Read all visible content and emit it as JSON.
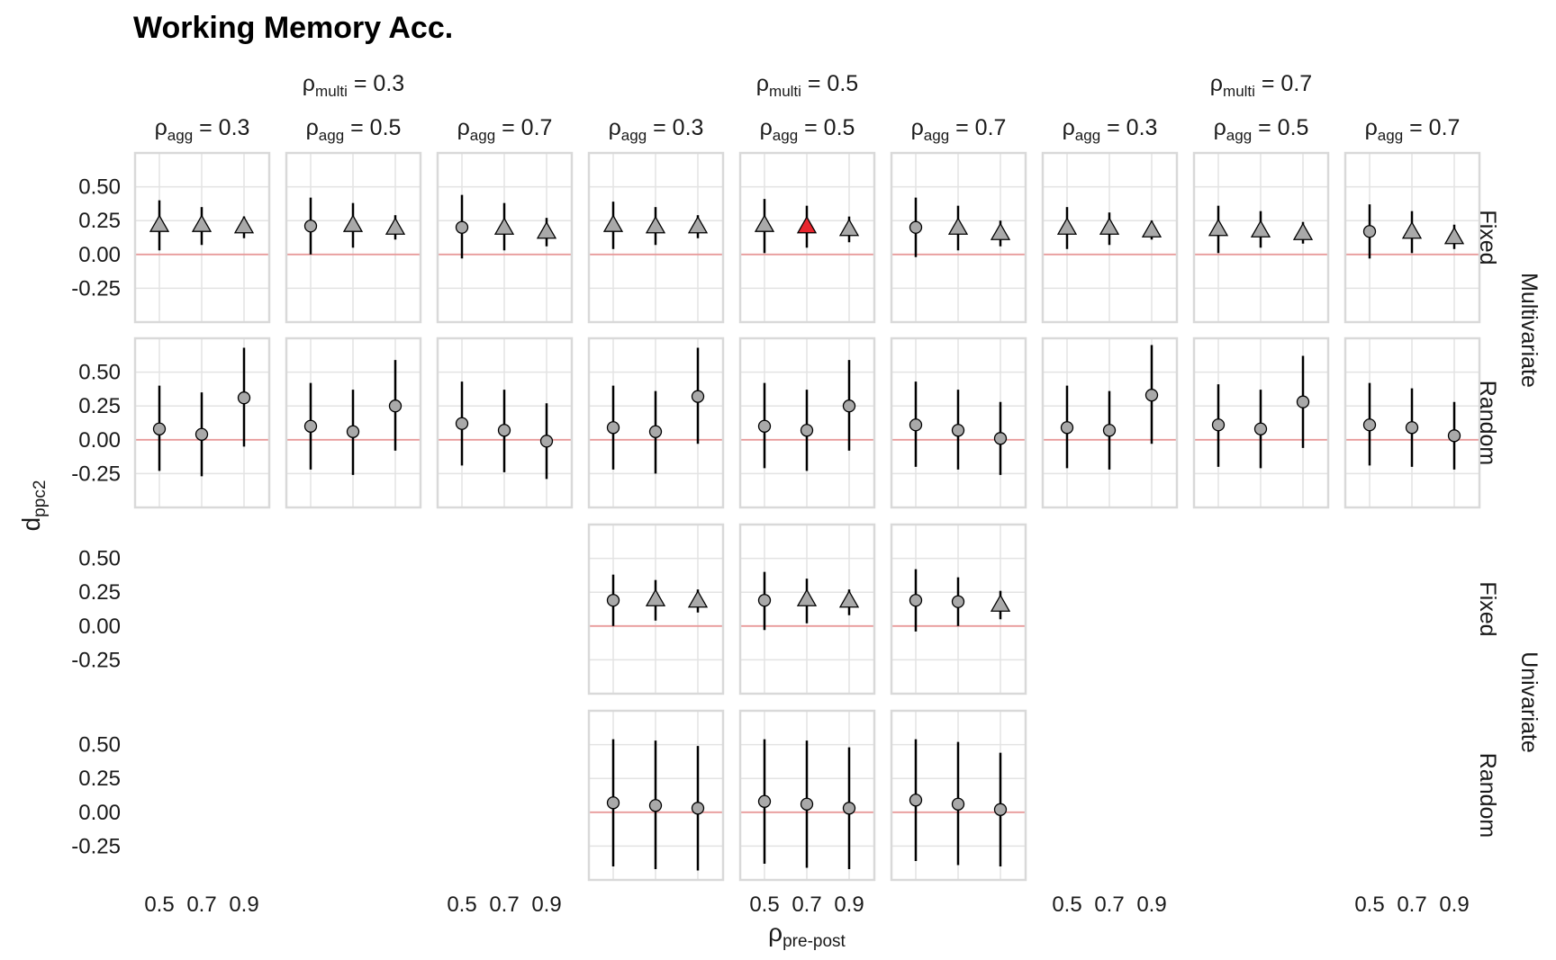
{
  "title": "Working Memory Acc.",
  "chart_data": {
    "type": "scatter",
    "title": "Working Memory Acc.",
    "xlabel": "ρ",
    "xlabel_sub": "pre-post",
    "ylabel": "d",
    "ylabel_sub": "ppc2",
    "x_ticks": [
      "0.5",
      "0.7",
      "0.9"
    ],
    "y_ticks": [
      "0.50",
      "0.25",
      "0.00",
      "-0.25"
    ],
    "ylim": [
      -0.5,
      0.75
    ],
    "reference_line": 0,
    "colors": {
      "point": "#a9a9a9",
      "highlight": "#e8262e",
      "reference": "#e89a9a",
      "border": "#d9d9d9",
      "grid": "#e3e3e3"
    },
    "column_groups": [
      {
        "label": "ρ",
        "sub": "multi",
        "value": "= 0.3"
      },
      {
        "label": "ρ",
        "sub": "multi",
        "value": "= 0.5"
      },
      {
        "label": "ρ",
        "sub": "multi",
        "value": "= 0.7"
      }
    ],
    "columns": [
      {
        "label": "ρ",
        "sub": "agg",
        "value": "= 0.3"
      },
      {
        "label": "ρ",
        "sub": "agg",
        "value": "= 0.5"
      },
      {
        "label": "ρ",
        "sub": "agg",
        "value": "= 0.7"
      },
      {
        "label": "ρ",
        "sub": "agg",
        "value": "= 0.3"
      },
      {
        "label": "ρ",
        "sub": "agg",
        "value": "= 0.5"
      },
      {
        "label": "ρ",
        "sub": "agg",
        "value": "= 0.7"
      },
      {
        "label": "ρ",
        "sub": "agg",
        "value": "= 0.3"
      },
      {
        "label": "ρ",
        "sub": "agg",
        "value": "= 0.5"
      },
      {
        "label": "ρ",
        "sub": "agg",
        "value": "= 0.7"
      }
    ],
    "row_groups": [
      "Multivariate",
      "Univariate"
    ],
    "rows": [
      "Fixed",
      "Random",
      "Fixed",
      "Random"
    ],
    "x_tick_columns": [
      0,
      2,
      4,
      6,
      8
    ],
    "panels": [
      {
        "row": 0,
        "col": 0,
        "points": [
          {
            "x": 0.5,
            "y": 0.22,
            "lo": 0.03,
            "hi": 0.4,
            "shape": "triangle"
          },
          {
            "x": 0.7,
            "y": 0.22,
            "lo": 0.07,
            "hi": 0.35,
            "shape": "triangle"
          },
          {
            "x": 0.9,
            "y": 0.21,
            "lo": 0.12,
            "hi": 0.28,
            "shape": "triangle"
          }
        ]
      },
      {
        "row": 0,
        "col": 1,
        "points": [
          {
            "x": 0.5,
            "y": 0.21,
            "lo": 0.0,
            "hi": 0.42,
            "shape": "circle"
          },
          {
            "x": 0.7,
            "y": 0.22,
            "lo": 0.05,
            "hi": 0.38,
            "shape": "triangle"
          },
          {
            "x": 0.9,
            "y": 0.2,
            "lo": 0.11,
            "hi": 0.29,
            "shape": "triangle"
          }
        ]
      },
      {
        "row": 0,
        "col": 2,
        "points": [
          {
            "x": 0.5,
            "y": 0.2,
            "lo": -0.03,
            "hi": 0.44,
            "shape": "circle"
          },
          {
            "x": 0.7,
            "y": 0.2,
            "lo": 0.03,
            "hi": 0.38,
            "shape": "triangle"
          },
          {
            "x": 0.9,
            "y": 0.17,
            "lo": 0.06,
            "hi": 0.27,
            "shape": "triangle"
          }
        ]
      },
      {
        "row": 0,
        "col": 3,
        "points": [
          {
            "x": 0.5,
            "y": 0.22,
            "lo": 0.04,
            "hi": 0.39,
            "shape": "triangle"
          },
          {
            "x": 0.7,
            "y": 0.21,
            "lo": 0.07,
            "hi": 0.35,
            "shape": "triangle"
          },
          {
            "x": 0.9,
            "y": 0.21,
            "lo": 0.12,
            "hi": 0.29,
            "shape": "triangle"
          }
        ]
      },
      {
        "row": 0,
        "col": 4,
        "points": [
          {
            "x": 0.5,
            "y": 0.22,
            "lo": 0.01,
            "hi": 0.41,
            "shape": "triangle"
          },
          {
            "x": 0.7,
            "y": 0.21,
            "lo": 0.05,
            "hi": 0.36,
            "shape": "triangle",
            "highlight": true
          },
          {
            "x": 0.9,
            "y": 0.19,
            "lo": 0.09,
            "hi": 0.28,
            "shape": "triangle"
          }
        ]
      },
      {
        "row": 0,
        "col": 5,
        "points": [
          {
            "x": 0.5,
            "y": 0.2,
            "lo": -0.02,
            "hi": 0.42,
            "shape": "circle"
          },
          {
            "x": 0.7,
            "y": 0.2,
            "lo": 0.03,
            "hi": 0.36,
            "shape": "triangle"
          },
          {
            "x": 0.9,
            "y": 0.16,
            "lo": 0.06,
            "hi": 0.25,
            "shape": "triangle"
          }
        ]
      },
      {
        "row": 0,
        "col": 6,
        "points": [
          {
            "x": 0.5,
            "y": 0.2,
            "lo": 0.04,
            "hi": 0.35,
            "shape": "triangle"
          },
          {
            "x": 0.7,
            "y": 0.2,
            "lo": 0.07,
            "hi": 0.31,
            "shape": "triangle"
          },
          {
            "x": 0.9,
            "y": 0.18,
            "lo": 0.11,
            "hi": 0.25,
            "shape": "triangle"
          }
        ]
      },
      {
        "row": 0,
        "col": 7,
        "points": [
          {
            "x": 0.5,
            "y": 0.19,
            "lo": 0.01,
            "hi": 0.36,
            "shape": "triangle"
          },
          {
            "x": 0.7,
            "y": 0.18,
            "lo": 0.05,
            "hi": 0.32,
            "shape": "triangle"
          },
          {
            "x": 0.9,
            "y": 0.16,
            "lo": 0.08,
            "hi": 0.24,
            "shape": "triangle"
          }
        ]
      },
      {
        "row": 0,
        "col": 8,
        "points": [
          {
            "x": 0.5,
            "y": 0.17,
            "lo": -0.03,
            "hi": 0.37,
            "shape": "circle"
          },
          {
            "x": 0.7,
            "y": 0.17,
            "lo": 0.01,
            "hi": 0.32,
            "shape": "triangle"
          },
          {
            "x": 0.9,
            "y": 0.13,
            "lo": 0.04,
            "hi": 0.22,
            "shape": "triangle"
          }
        ]
      },
      {
        "row": 1,
        "col": 0,
        "points": [
          {
            "x": 0.5,
            "y": 0.08,
            "lo": -0.23,
            "hi": 0.4,
            "shape": "circle"
          },
          {
            "x": 0.7,
            "y": 0.04,
            "lo": -0.27,
            "hi": 0.35,
            "shape": "circle"
          },
          {
            "x": 0.9,
            "y": 0.31,
            "lo": -0.05,
            "hi": 0.68,
            "shape": "circle"
          }
        ]
      },
      {
        "row": 1,
        "col": 1,
        "points": [
          {
            "x": 0.5,
            "y": 0.1,
            "lo": -0.22,
            "hi": 0.42,
            "shape": "circle"
          },
          {
            "x": 0.7,
            "y": 0.06,
            "lo": -0.26,
            "hi": 0.37,
            "shape": "circle"
          },
          {
            "x": 0.9,
            "y": 0.25,
            "lo": -0.08,
            "hi": 0.59,
            "shape": "circle"
          }
        ]
      },
      {
        "row": 1,
        "col": 2,
        "points": [
          {
            "x": 0.5,
            "y": 0.12,
            "lo": -0.19,
            "hi": 0.43,
            "shape": "circle"
          },
          {
            "x": 0.7,
            "y": 0.07,
            "lo": -0.24,
            "hi": 0.37,
            "shape": "circle"
          },
          {
            "x": 0.9,
            "y": -0.01,
            "lo": -0.29,
            "hi": 0.27,
            "shape": "circle"
          }
        ]
      },
      {
        "row": 1,
        "col": 3,
        "points": [
          {
            "x": 0.5,
            "y": 0.09,
            "lo": -0.22,
            "hi": 0.4,
            "shape": "circle"
          },
          {
            "x": 0.7,
            "y": 0.06,
            "lo": -0.25,
            "hi": 0.36,
            "shape": "circle"
          },
          {
            "x": 0.9,
            "y": 0.32,
            "lo": -0.03,
            "hi": 0.68,
            "shape": "circle"
          }
        ]
      },
      {
        "row": 1,
        "col": 4,
        "points": [
          {
            "x": 0.5,
            "y": 0.1,
            "lo": -0.21,
            "hi": 0.42,
            "shape": "circle"
          },
          {
            "x": 0.7,
            "y": 0.07,
            "lo": -0.23,
            "hi": 0.37,
            "shape": "circle"
          },
          {
            "x": 0.9,
            "y": 0.25,
            "lo": -0.08,
            "hi": 0.59,
            "shape": "circle"
          }
        ]
      },
      {
        "row": 1,
        "col": 5,
        "points": [
          {
            "x": 0.5,
            "y": 0.11,
            "lo": -0.2,
            "hi": 0.43,
            "shape": "circle"
          },
          {
            "x": 0.7,
            "y": 0.07,
            "lo": -0.22,
            "hi": 0.37,
            "shape": "circle"
          },
          {
            "x": 0.9,
            "y": 0.01,
            "lo": -0.26,
            "hi": 0.28,
            "shape": "circle"
          }
        ]
      },
      {
        "row": 1,
        "col": 6,
        "points": [
          {
            "x": 0.5,
            "y": 0.09,
            "lo": -0.21,
            "hi": 0.4,
            "shape": "circle"
          },
          {
            "x": 0.7,
            "y": 0.07,
            "lo": -0.22,
            "hi": 0.36,
            "shape": "circle"
          },
          {
            "x": 0.9,
            "y": 0.33,
            "lo": -0.03,
            "hi": 0.7,
            "shape": "circle"
          }
        ]
      },
      {
        "row": 1,
        "col": 7,
        "points": [
          {
            "x": 0.5,
            "y": 0.11,
            "lo": -0.2,
            "hi": 0.41,
            "shape": "circle"
          },
          {
            "x": 0.7,
            "y": 0.08,
            "lo": -0.21,
            "hi": 0.37,
            "shape": "circle"
          },
          {
            "x": 0.9,
            "y": 0.28,
            "lo": -0.06,
            "hi": 0.62,
            "shape": "circle"
          }
        ]
      },
      {
        "row": 1,
        "col": 8,
        "points": [
          {
            "x": 0.5,
            "y": 0.11,
            "lo": -0.19,
            "hi": 0.42,
            "shape": "circle"
          },
          {
            "x": 0.7,
            "y": 0.09,
            "lo": -0.2,
            "hi": 0.38,
            "shape": "circle"
          },
          {
            "x": 0.9,
            "y": 0.03,
            "lo": -0.22,
            "hi": 0.28,
            "shape": "circle"
          }
        ]
      },
      {
        "row": 2,
        "col": 3,
        "points": [
          {
            "x": 0.5,
            "y": 0.19,
            "lo": 0.0,
            "hi": 0.38,
            "shape": "circle"
          },
          {
            "x": 0.7,
            "y": 0.2,
            "lo": 0.04,
            "hi": 0.34,
            "shape": "triangle"
          },
          {
            "x": 0.9,
            "y": 0.19,
            "lo": 0.1,
            "hi": 0.27,
            "shape": "triangle"
          }
        ]
      },
      {
        "row": 2,
        "col": 4,
        "points": [
          {
            "x": 0.5,
            "y": 0.19,
            "lo": -0.03,
            "hi": 0.4,
            "shape": "circle"
          },
          {
            "x": 0.7,
            "y": 0.2,
            "lo": 0.02,
            "hi": 0.35,
            "shape": "triangle"
          },
          {
            "x": 0.9,
            "y": 0.19,
            "lo": 0.08,
            "hi": 0.27,
            "shape": "triangle"
          }
        ]
      },
      {
        "row": 2,
        "col": 5,
        "points": [
          {
            "x": 0.5,
            "y": 0.19,
            "lo": -0.04,
            "hi": 0.42,
            "shape": "circle"
          },
          {
            "x": 0.7,
            "y": 0.18,
            "lo": 0.0,
            "hi": 0.36,
            "shape": "circle"
          },
          {
            "x": 0.9,
            "y": 0.16,
            "lo": 0.05,
            "hi": 0.26,
            "shape": "triangle"
          }
        ]
      },
      {
        "row": 3,
        "col": 3,
        "points": [
          {
            "x": 0.5,
            "y": 0.07,
            "lo": -0.4,
            "hi": 0.54,
            "shape": "circle"
          },
          {
            "x": 0.7,
            "y": 0.05,
            "lo": -0.42,
            "hi": 0.53,
            "shape": "circle"
          },
          {
            "x": 0.9,
            "y": 0.03,
            "lo": -0.43,
            "hi": 0.49,
            "shape": "circle"
          }
        ]
      },
      {
        "row": 3,
        "col": 4,
        "points": [
          {
            "x": 0.5,
            "y": 0.08,
            "lo": -0.38,
            "hi": 0.54,
            "shape": "circle"
          },
          {
            "x": 0.7,
            "y": 0.06,
            "lo": -0.41,
            "hi": 0.53,
            "shape": "circle"
          },
          {
            "x": 0.9,
            "y": 0.03,
            "lo": -0.42,
            "hi": 0.48,
            "shape": "circle"
          }
        ]
      },
      {
        "row": 3,
        "col": 5,
        "points": [
          {
            "x": 0.5,
            "y": 0.09,
            "lo": -0.36,
            "hi": 0.54,
            "shape": "circle"
          },
          {
            "x": 0.7,
            "y": 0.06,
            "lo": -0.39,
            "hi": 0.52,
            "shape": "circle"
          },
          {
            "x": 0.9,
            "y": 0.02,
            "lo": -0.4,
            "hi": 0.44,
            "shape": "circle"
          }
        ]
      }
    ]
  }
}
